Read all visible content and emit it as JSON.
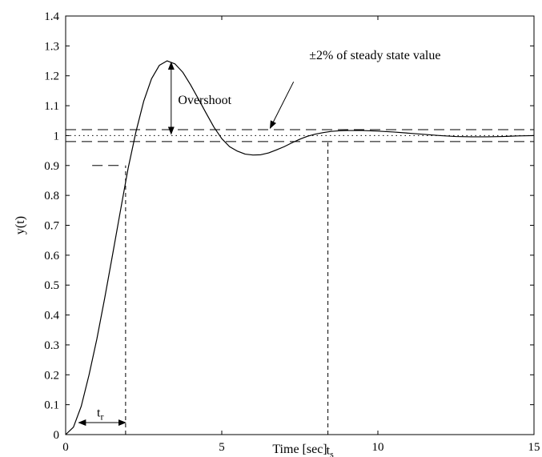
{
  "chart_data": {
    "type": "line",
    "xlabel": "Time [sec]",
    "ylabel": "y(t)",
    "xlim": [
      0,
      15
    ],
    "ylim": [
      0,
      1.4
    ],
    "xticks": [
      0,
      5,
      10,
      15
    ],
    "xtick_labels": [
      "0",
      "5",
      "10",
      "15"
    ],
    "yticks": [
      0,
      0.1,
      0.2,
      0.3,
      0.4,
      0.5,
      0.6,
      0.7,
      0.8,
      0.9,
      1,
      1.1,
      1.2,
      1.3,
      1.4
    ],
    "ytick_labels": [
      "0",
      "0.1",
      "0.2",
      "0.3",
      "0.4",
      "0.5",
      "0.6",
      "0.7",
      "0.8",
      "0.9",
      "1",
      "1.1",
      "1.2",
      "1.3",
      "1.4"
    ],
    "grid": false,
    "series": [
      {
        "x": [
          0,
          0.25,
          0.5,
          0.75,
          1.0,
          1.25,
          1.5,
          1.75,
          2.0,
          2.25,
          2.5,
          2.75,
          3.0,
          3.25,
          3.5,
          3.75,
          4.0,
          4.25,
          4.5,
          4.75,
          5.0,
          5.25,
          5.5,
          5.75,
          6.0,
          6.25,
          6.5,
          6.75,
          7.0,
          7.25,
          7.5,
          7.75,
          8.0,
          8.25,
          8.5,
          8.75,
          9.0,
          9.25,
          9.5,
          9.75,
          10.0,
          10.5,
          11.0,
          11.5,
          12.0,
          12.5,
          13.0,
          13.5,
          14.0,
          14.5,
          15.0
        ],
        "y": [
          0,
          0.025,
          0.095,
          0.2,
          0.32,
          0.456,
          0.6,
          0.746,
          0.89,
          1.012,
          1.115,
          1.19,
          1.235,
          1.25,
          1.24,
          1.212,
          1.17,
          1.123,
          1.075,
          1.028,
          0.99,
          0.963,
          0.948,
          0.938,
          0.935,
          0.936,
          0.942,
          0.952,
          0.963,
          0.976,
          0.988,
          0.998,
          1.005,
          1.01,
          1.014,
          1.016,
          1.017,
          1.017,
          1.017,
          1.016,
          1.015,
          1.012,
          1.008,
          1.004,
          1.0,
          0.997,
          0.996,
          0.996,
          0.997,
          0.999,
          1.0
        ],
        "style": "solid"
      }
    ],
    "reference_lines": [
      {
        "y": 1.02,
        "style": "dashed",
        "x_from": 0,
        "x_to": 15
      },
      {
        "y": 0.98,
        "style": "dashed",
        "x_from": 0,
        "x_to": 15
      },
      {
        "y": 1.0,
        "style": "dotted",
        "x_from": 0,
        "x_to": 15
      },
      {
        "y": 0.9,
        "style": "dashed",
        "x_from": 0.85,
        "x_to": 1.85
      },
      {
        "x": 1.92,
        "style": "dashed",
        "y_from": 0,
        "y_to": 0.9
      },
      {
        "x": 8.4,
        "style": "dashed",
        "y_from": 0,
        "y_to": 0.98
      }
    ],
    "annotations": {
      "overshoot": "Overshoot",
      "band": "±2% of steady state value",
      "rise_time_base": "t",
      "rise_time_sub": "r",
      "settling_time_base": "t",
      "settling_time_sub": "s"
    },
    "annotation_positions": {
      "overshoot_x": 3.38,
      "overshoot_top_y": 1.25,
      "overshoot_bottom_y": 1.0,
      "overshoot_label_x": 3.6,
      "overshoot_label_y": 1.105,
      "band_arrow_from_x": 7.3,
      "band_arrow_from_y": 1.18,
      "band_arrow_to_x": 6.55,
      "band_arrow_to_y": 1.025,
      "band_label_x": 7.8,
      "band_label_y": 1.255,
      "rise_arrow_from_x": 0.42,
      "rise_arrow_to_x": 1.92,
      "rise_arrow_y": 0.04,
      "rise_label_x": 1.0,
      "rise_label_y": 0.06,
      "settle_label_x": 8.35,
      "settle_label_y": -0.065
    }
  }
}
